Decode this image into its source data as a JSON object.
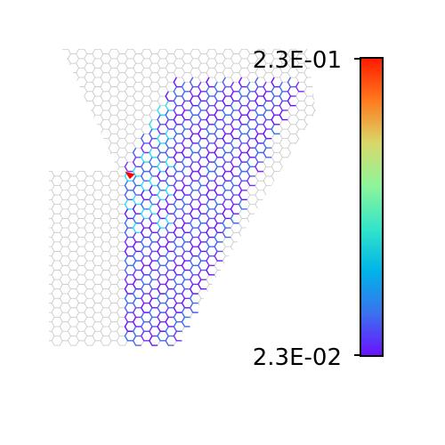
{
  "colorbar": {
    "max_label": "2.3E-01",
    "min_label": "2.3E-02",
    "colormap": "rainbow",
    "gradient_stops": [
      "#ff1a00",
      "#ff7a1e",
      "#d8d86a",
      "#8ef59a",
      "#33e5c8",
      "#00b4e8",
      "#3a72ee",
      "#6a10ff"
    ]
  },
  "lattice": {
    "background_edge_color": "#c6c6c6",
    "hot_spot_color": "#ff0000",
    "highlight_colors": [
      "#6a10ff",
      "#7b2cf8",
      "#4d5ff0",
      "#3a72ee",
      "#2bdff0"
    ]
  }
}
